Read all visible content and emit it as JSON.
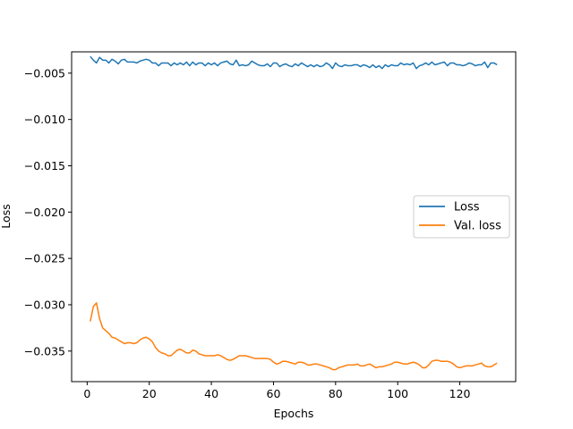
{
  "chart_data": {
    "type": "line",
    "title": "",
    "xlabel": "Epochs",
    "ylabel": "Loss",
    "xlim": [
      -5,
      138
    ],
    "ylim": [
      -0.0383,
      -0.0027
    ],
    "xticks": [
      0,
      20,
      40,
      60,
      80,
      100,
      120
    ],
    "xtick_labels": [
      "0",
      "20",
      "40",
      "60",
      "80",
      "100",
      "120"
    ],
    "yticks": [
      -0.035,
      -0.03,
      -0.025,
      -0.02,
      -0.015,
      -0.01,
      -0.005
    ],
    "ytick_labels": [
      "−0.035",
      "−0.030",
      "−0.025",
      "−0.020",
      "−0.015",
      "−0.010",
      "−0.005"
    ],
    "grid": false,
    "legend_position": "center-right",
    "series": [
      {
        "name": "Loss",
        "color": "#1f77b4",
        "x": [
          1,
          2,
          3,
          4,
          5,
          6,
          7,
          8,
          9,
          10,
          11,
          12,
          13,
          14,
          15,
          16,
          17,
          18,
          19,
          20,
          21,
          22,
          23,
          24,
          25,
          26,
          27,
          28,
          29,
          30,
          31,
          32,
          33,
          34,
          35,
          36,
          37,
          38,
          39,
          40,
          41,
          42,
          43,
          44,
          45,
          46,
          47,
          48,
          49,
          50,
          51,
          52,
          53,
          54,
          55,
          56,
          57,
          58,
          59,
          60,
          61,
          62,
          63,
          64,
          65,
          66,
          67,
          68,
          69,
          70,
          71,
          72,
          73,
          74,
          75,
          76,
          77,
          78,
          79,
          80,
          81,
          82,
          83,
          84,
          85,
          86,
          87,
          88,
          89,
          90,
          91,
          92,
          93,
          94,
          95,
          96,
          97,
          98,
          99,
          100,
          101,
          102,
          103,
          104,
          105,
          106,
          107,
          108,
          109,
          110,
          111,
          112,
          113,
          114,
          115,
          116,
          117,
          118,
          119,
          120,
          121,
          122,
          123,
          124,
          125,
          126,
          127,
          128,
          129,
          130,
          131,
          132
        ],
        "y": [
          -0.0032,
          -0.0036,
          -0.0039,
          -0.0033,
          -0.0036,
          -0.0036,
          -0.0039,
          -0.0035,
          -0.0037,
          -0.004,
          -0.0036,
          -0.0035,
          -0.0038,
          -0.0038,
          -0.0038,
          -0.0039,
          -0.0037,
          -0.0036,
          -0.0035,
          -0.0036,
          -0.0039,
          -0.0039,
          -0.0042,
          -0.0039,
          -0.0039,
          -0.0039,
          -0.0042,
          -0.0039,
          -0.0041,
          -0.0039,
          -0.0041,
          -0.0038,
          -0.0042,
          -0.0038,
          -0.0041,
          -0.0039,
          -0.0039,
          -0.0042,
          -0.0039,
          -0.0041,
          -0.0039,
          -0.0042,
          -0.0039,
          -0.0038,
          -0.0037,
          -0.004,
          -0.0041,
          -0.0036,
          -0.0042,
          -0.0041,
          -0.0042,
          -0.0041,
          -0.0037,
          -0.0039,
          -0.0041,
          -0.0042,
          -0.0042,
          -0.004,
          -0.0043,
          -0.0039,
          -0.0039,
          -0.0043,
          -0.0041,
          -0.004,
          -0.0042,
          -0.0043,
          -0.004,
          -0.0042,
          -0.0039,
          -0.0041,
          -0.0043,
          -0.0041,
          -0.0043,
          -0.0041,
          -0.0043,
          -0.0042,
          -0.0039,
          -0.0041,
          -0.0045,
          -0.0039,
          -0.0042,
          -0.0043,
          -0.0041,
          -0.0042,
          -0.0042,
          -0.0041,
          -0.0041,
          -0.0043,
          -0.0041,
          -0.0042,
          -0.0044,
          -0.0041,
          -0.0044,
          -0.0042,
          -0.0045,
          -0.0041,
          -0.0043,
          -0.0041,
          -0.0042,
          -0.0042,
          -0.0039,
          -0.0041,
          -0.004,
          -0.0041,
          -0.0039,
          -0.0045,
          -0.0042,
          -0.0041,
          -0.0039,
          -0.0041,
          -0.0038,
          -0.0041,
          -0.004,
          -0.0039,
          -0.0038,
          -0.0042,
          -0.0039,
          -0.0039,
          -0.0041,
          -0.0041,
          -0.0042,
          -0.0041,
          -0.0039,
          -0.004,
          -0.0042,
          -0.0041,
          -0.0041,
          -0.0038,
          -0.0044,
          -0.0039,
          -0.0039,
          -0.0041
        ]
      },
      {
        "name": "Val. loss",
        "color": "#ff7f0e",
        "x": [
          1,
          2,
          3,
          4,
          5,
          6,
          7,
          8,
          9,
          10,
          11,
          12,
          13,
          14,
          15,
          16,
          17,
          18,
          19,
          20,
          21,
          22,
          23,
          24,
          25,
          26,
          27,
          28,
          29,
          30,
          31,
          32,
          33,
          34,
          35,
          36,
          37,
          38,
          39,
          40,
          41,
          42,
          43,
          44,
          45,
          46,
          47,
          48,
          49,
          50,
          51,
          52,
          53,
          54,
          55,
          56,
          57,
          58,
          59,
          60,
          61,
          62,
          63,
          64,
          65,
          66,
          67,
          68,
          69,
          70,
          71,
          72,
          73,
          74,
          75,
          76,
          77,
          78,
          79,
          80,
          81,
          82,
          83,
          84,
          85,
          86,
          87,
          88,
          89,
          90,
          91,
          92,
          93,
          94,
          95,
          96,
          97,
          98,
          99,
          100,
          101,
          102,
          103,
          104,
          105,
          106,
          107,
          108,
          109,
          110,
          111,
          112,
          113,
          114,
          115,
          116,
          117,
          118,
          119,
          120,
          121,
          122,
          123,
          124,
          125,
          126,
          127,
          128,
          129,
          130,
          131,
          132
        ],
        "y": [
          -0.0318,
          -0.0302,
          -0.0298,
          -0.0315,
          -0.0325,
          -0.0328,
          -0.0331,
          -0.0335,
          -0.0336,
          -0.0338,
          -0.034,
          -0.0342,
          -0.0341,
          -0.0341,
          -0.0342,
          -0.0341,
          -0.0338,
          -0.0336,
          -0.0335,
          -0.0337,
          -0.034,
          -0.0346,
          -0.035,
          -0.0352,
          -0.0353,
          -0.0355,
          -0.0355,
          -0.0352,
          -0.0349,
          -0.0348,
          -0.035,
          -0.0352,
          -0.0352,
          -0.0349,
          -0.035,
          -0.0353,
          -0.0354,
          -0.0355,
          -0.0355,
          -0.0355,
          -0.0355,
          -0.0354,
          -0.0355,
          -0.0357,
          -0.0359,
          -0.036,
          -0.0359,
          -0.0357,
          -0.0355,
          -0.0355,
          -0.0355,
          -0.0356,
          -0.0357,
          -0.0358,
          -0.0358,
          -0.0358,
          -0.0358,
          -0.0358,
          -0.0359,
          -0.0362,
          -0.0364,
          -0.0363,
          -0.0361,
          -0.0361,
          -0.0362,
          -0.0363,
          -0.0364,
          -0.0362,
          -0.0362,
          -0.0363,
          -0.0365,
          -0.0365,
          -0.0364,
          -0.0364,
          -0.0365,
          -0.0366,
          -0.0367,
          -0.0368,
          -0.037,
          -0.037,
          -0.0368,
          -0.0367,
          -0.0366,
          -0.0365,
          -0.0365,
          -0.0365,
          -0.0364,
          -0.0366,
          -0.0366,
          -0.0365,
          -0.0364,
          -0.0366,
          -0.0368,
          -0.0367,
          -0.0367,
          -0.0366,
          -0.0365,
          -0.0364,
          -0.0362,
          -0.0362,
          -0.0363,
          -0.0364,
          -0.0364,
          -0.0363,
          -0.0362,
          -0.0363,
          -0.0365,
          -0.0368,
          -0.0368,
          -0.0365,
          -0.0361,
          -0.036,
          -0.036,
          -0.0361,
          -0.0361,
          -0.0361,
          -0.0362,
          -0.0364,
          -0.0367,
          -0.0368,
          -0.0367,
          -0.0366,
          -0.0366,
          -0.0366,
          -0.0365,
          -0.0364,
          -0.0363,
          -0.0366,
          -0.0367,
          -0.0367,
          -0.0365,
          -0.0363
        ]
      }
    ]
  }
}
